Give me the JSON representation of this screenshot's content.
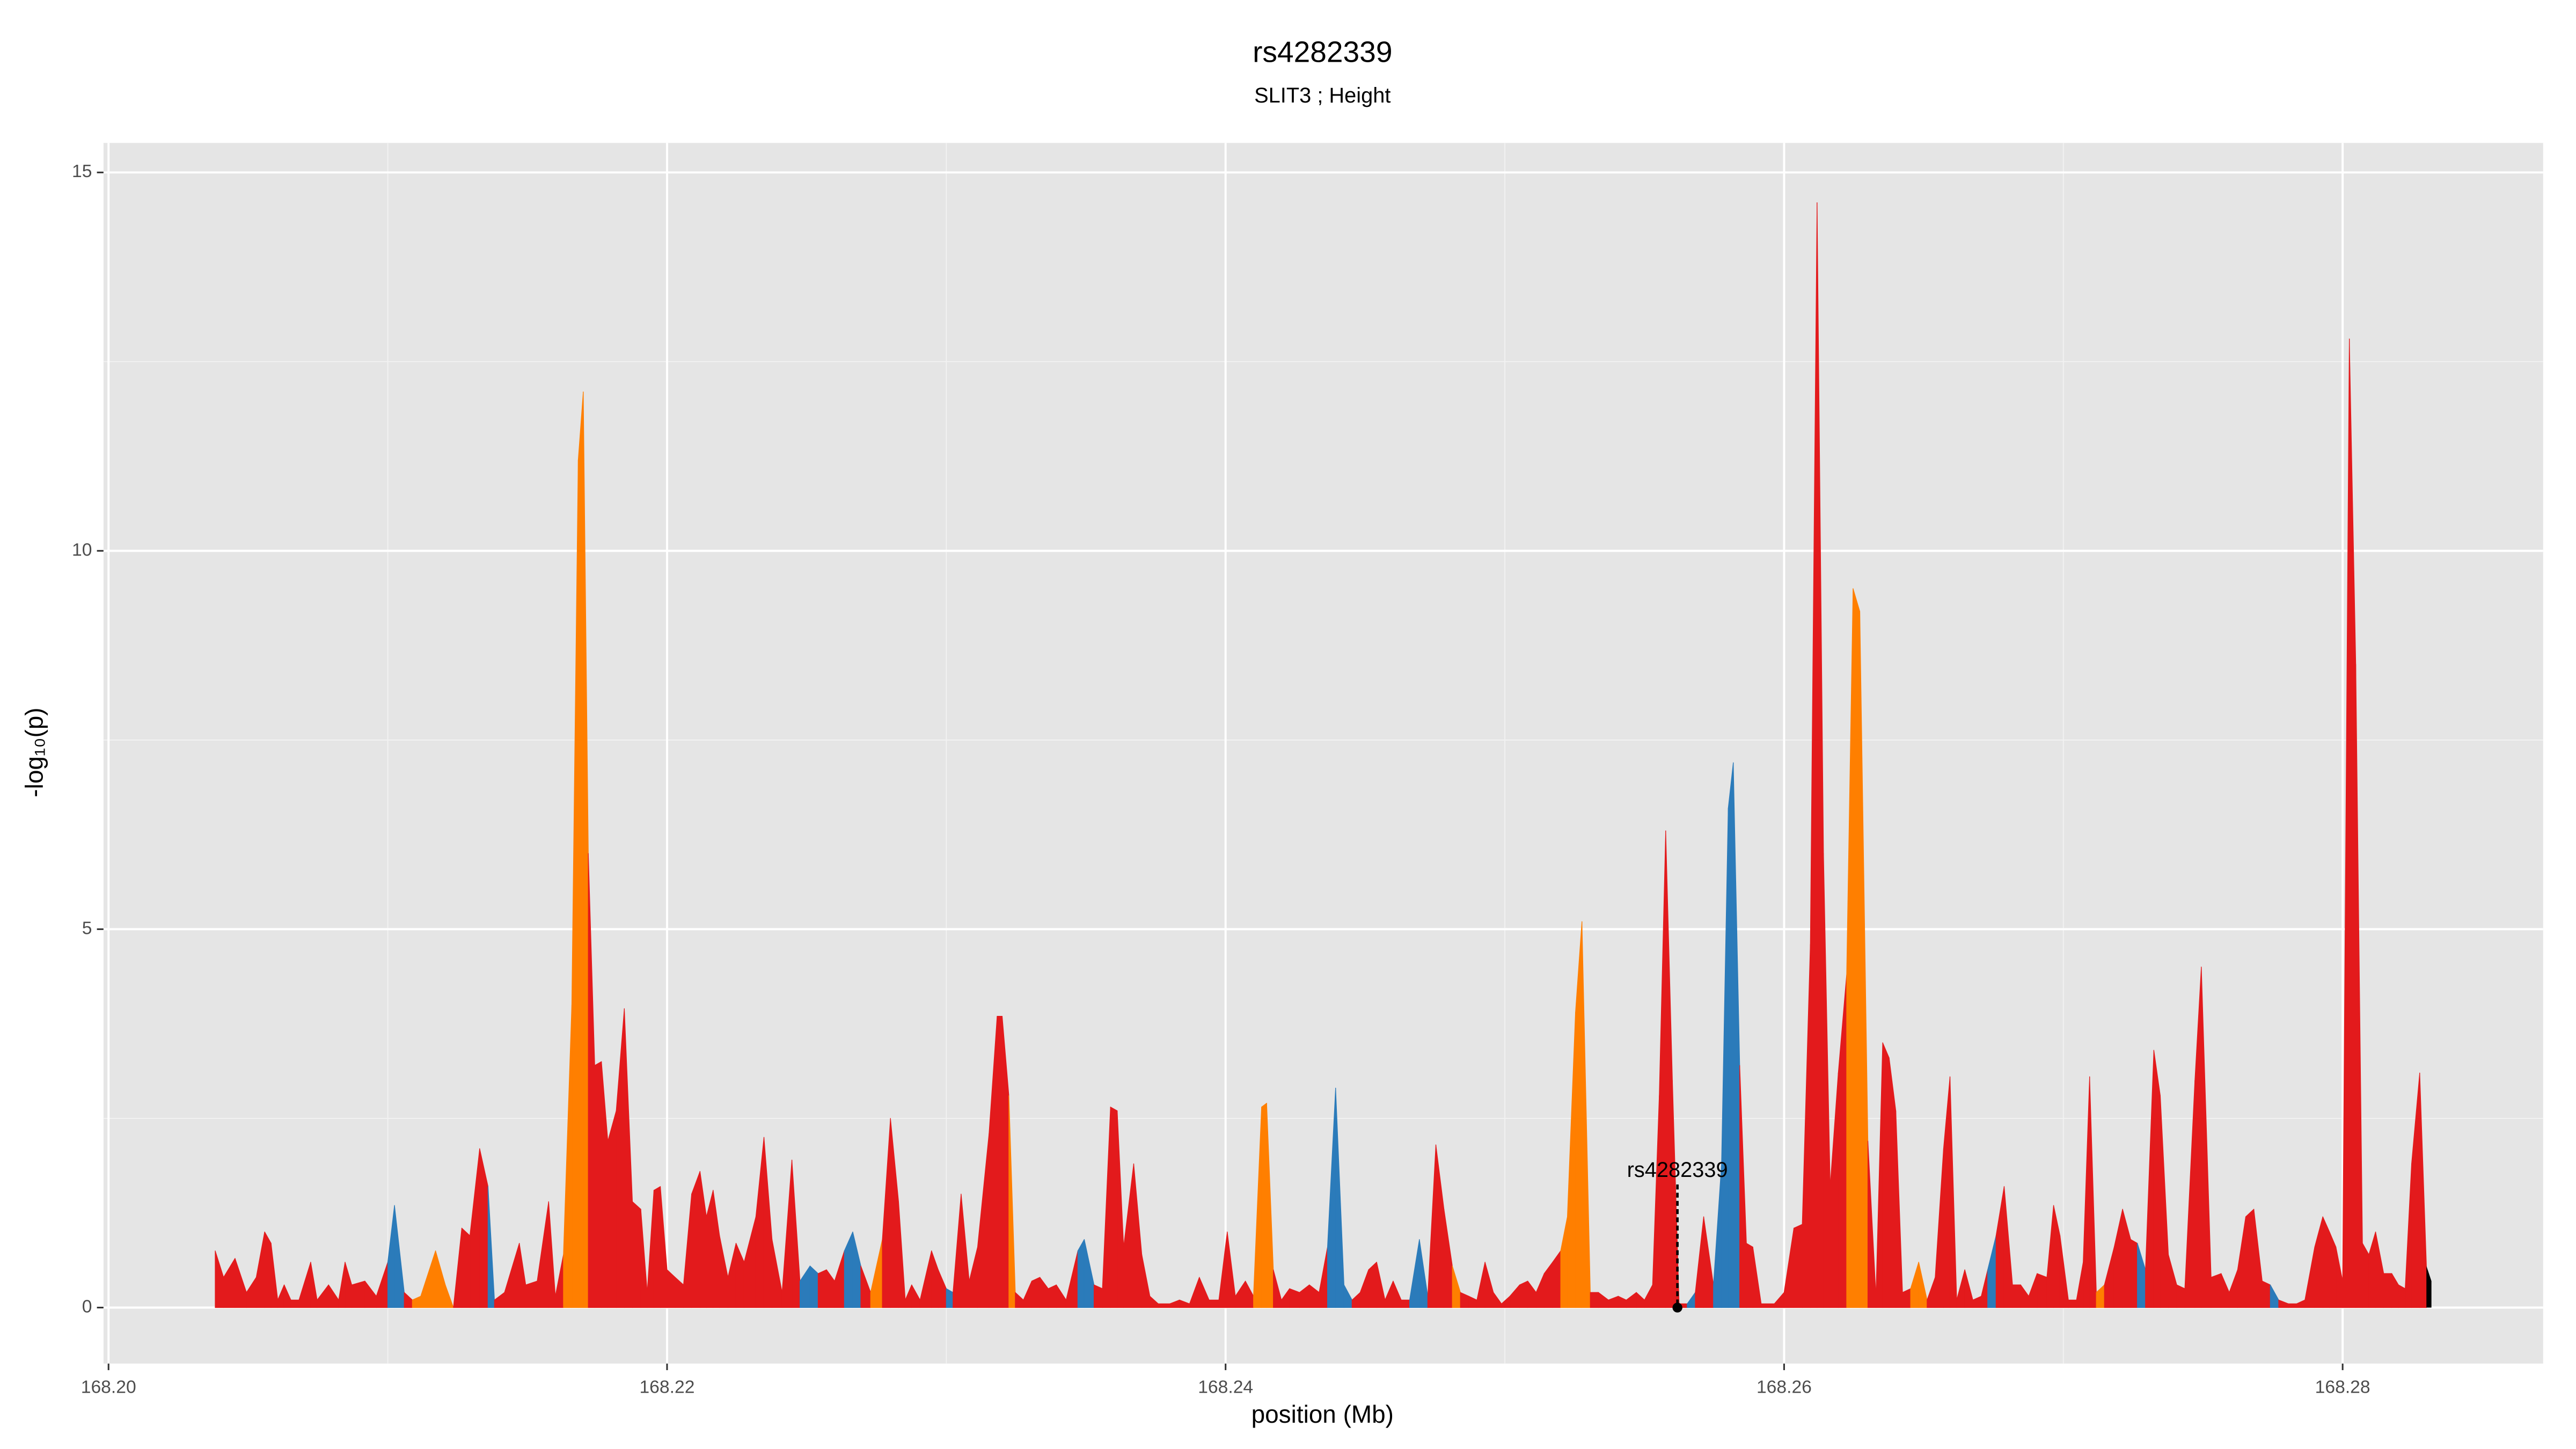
{
  "chart_data": {
    "type": "area",
    "title": "rs4282339",
    "subtitle": "SLIT3 ; Height",
    "x_label": "position (Mb)",
    "y_label": "-log₁₀(p)",
    "xlim": [
      168.19982,
      168.28718
    ],
    "ylim": [
      -0.74,
      15.39
    ],
    "xticks": [
      {
        "value": 168.2,
        "label": "168.20"
      },
      168.22,
      168.24,
      168.26,
      168.28
    ],
    "yticks": [
      0,
      5,
      10,
      15
    ],
    "x_minor_grid": [
      168.21,
      168.23,
      168.25,
      168.27
    ],
    "y_minor_grid": [
      2.5,
      7.5,
      12.5
    ],
    "grid": true,
    "x": [
      168.20382,
      168.20412,
      168.20453,
      168.20494,
      168.20529,
      168.20559,
      168.20582,
      168.20606,
      168.20629,
      168.20653,
      168.20682,
      168.20724,
      168.20747,
      168.20788,
      168.20824,
      168.20847,
      168.20871,
      168.20918,
      168.20959,
      168.21,
      168.21024,
      168.21059,
      168.21088,
      168.21118,
      168.21171,
      168.21206,
      168.21235,
      168.21265,
      168.21294,
      168.21329,
      168.21359,
      168.21382,
      168.21418,
      168.21471,
      168.21494,
      168.21535,
      168.21576,
      168.216,
      168.21629,
      168.21659,
      168.21682,
      168.217,
      168.21718,
      168.21741,
      168.21765,
      168.21788,
      168.21818,
      168.21847,
      168.21876,
      168.21906,
      168.21929,
      168.21953,
      168.21976,
      168.22,
      168.22029,
      168.22059,
      168.22088,
      168.22118,
      168.22141,
      168.22165,
      168.22188,
      168.22218,
      168.22247,
      168.22276,
      168.22318,
      168.22347,
      168.22376,
      168.22412,
      168.22447,
      168.22476,
      168.22512,
      168.22541,
      168.22571,
      168.226,
      168.22635,
      168.22665,
      168.22694,
      168.22729,
      168.22771,
      168.228,
      168.22829,
      168.22853,
      168.22876,
      168.22906,
      168.22947,
      168.22971,
      168.23,
      168.23024,
      168.23053,
      168.23082,
      168.23112,
      168.23153,
      168.23182,
      168.232,
      168.23224,
      168.23247,
      168.23276,
      168.23306,
      168.23335,
      168.23365,
      168.23394,
      168.23429,
      168.23471,
      168.23494,
      168.23529,
      168.23559,
      168.23588,
      168.23612,
      168.23635,
      168.23671,
      168.237,
      168.23729,
      168.23759,
      168.238,
      168.23835,
      168.23871,
      168.23906,
      168.23941,
      168.23976,
      168.24006,
      168.24035,
      168.24071,
      168.241,
      168.24129,
      168.24147,
      168.24171,
      168.242,
      168.24229,
      168.24265,
      168.243,
      168.24335,
      168.24365,
      168.24394,
      168.24424,
      168.24453,
      168.24482,
      168.24512,
      168.24541,
      168.24571,
      168.246,
      168.24629,
      168.24659,
      168.24694,
      168.24724,
      168.24753,
      168.24782,
      168.24812,
      168.24841,
      168.24871,
      168.249,
      168.24929,
      168.24959,
      168.24988,
      168.25018,
      168.25053,
      168.25082,
      168.25112,
      168.25141,
      168.25171,
      168.252,
      168.25224,
      168.25253,
      168.25276,
      168.25306,
      168.25335,
      168.25371,
      168.25406,
      168.25435,
      168.25471,
      168.255,
      168.25529,
      168.25553,
      168.25576,
      168.256,
      168.25624,
      168.25653,
      168.25682,
      168.25712,
      168.25747,
      168.25776,
      168.258,
      168.25818,
      168.25841,
      168.25865,
      168.25888,
      168.25918,
      168.25965,
      168.26,
      168.26035,
      168.26065,
      168.26094,
      168.26118,
      168.26141,
      168.26165,
      168.26194,
      168.26224,
      168.26247,
      168.26271,
      168.263,
      168.26329,
      168.26353,
      168.26376,
      168.264,
      168.26424,
      168.26453,
      168.26482,
      168.26512,
      168.26541,
      168.26571,
      168.26594,
      168.26618,
      168.26647,
      168.26676,
      168.26706,
      168.26729,
      168.26759,
      168.26788,
      168.26818,
      168.26847,
      168.26876,
      168.26906,
      168.26941,
      168.26965,
      168.26988,
      168.27018,
      168.27047,
      168.27071,
      168.27094,
      168.27118,
      168.27147,
      168.27182,
      168.27212,
      168.27241,
      168.27265,
      168.27294,
      168.27324,
      168.27347,
      168.27376,
      168.27406,
      168.27435,
      168.27471,
      168.27494,
      168.27529,
      168.27565,
      168.27594,
      168.27624,
      168.27653,
      168.27682,
      168.27712,
      168.27741,
      168.27771,
      168.27806,
      168.27835,
      168.27865,
      168.279,
      168.27929,
      168.27953,
      168.27976,
      168.28,
      168.28024,
      168.28047,
      168.28071,
      168.28094,
      168.28118,
      168.28147,
      168.28176,
      168.282,
      168.28224,
      168.28247,
      168.28276,
      168.283,
      168.28318
    ],
    "values": [
      0.75,
      0.4,
      0.65,
      0.2,
      0.4,
      1.0,
      0.85,
      0.1,
      0.3,
      0.1,
      0.1,
      0.6,
      0.1,
      0.3,
      0.1,
      0.6,
      0.3,
      0.35,
      0.15,
      0.6,
      1.35,
      0.2,
      0.1,
      0.15,
      0.75,
      0.3,
      0.0,
      1.05,
      0.95,
      2.1,
      1.6,
      0.1,
      0.2,
      0.85,
      0.3,
      0.35,
      1.4,
      0.15,
      0.7,
      4.0,
      11.2,
      12.1,
      6.0,
      3.2,
      3.25,
      2.2,
      2.6,
      3.95,
      1.4,
      1.3,
      0.2,
      1.55,
      1.6,
      0.5,
      0.4,
      0.3,
      1.5,
      1.8,
      1.2,
      1.55,
      0.95,
      0.4,
      0.85,
      0.6,
      1.2,
      2.25,
      0.9,
      0.2,
      1.95,
      0.35,
      0.55,
      0.45,
      0.5,
      0.35,
      0.75,
      1.0,
      0.55,
      0.2,
      0.9,
      2.5,
      1.4,
      0.1,
      0.3,
      0.1,
      0.75,
      0.5,
      0.25,
      0.2,
      1.5,
      0.35,
      0.8,
      2.3,
      3.85,
      3.85,
      2.8,
      0.2,
      0.1,
      0.35,
      0.4,
      0.25,
      0.3,
      0.1,
      0.75,
      0.9,
      0.3,
      0.25,
      2.65,
      2.6,
      0.8,
      1.9,
      0.7,
      0.15,
      0.05,
      0.05,
      0.1,
      0.05,
      0.4,
      0.1,
      0.1,
      1.0,
      0.15,
      0.35,
      0.15,
      2.65,
      2.7,
      0.5,
      0.1,
      0.25,
      0.2,
      0.3,
      0.2,
      0.8,
      2.9,
      0.3,
      0.1,
      0.2,
      0.5,
      0.6,
      0.1,
      0.35,
      0.1,
      0.1,
      0.9,
      0.15,
      2.15,
      1.3,
      0.55,
      0.2,
      0.15,
      0.1,
      0.6,
      0.2,
      0.05,
      0.15,
      0.3,
      0.35,
      0.2,
      0.45,
      0.6,
      0.75,
      1.2,
      3.9,
      5.1,
      0.2,
      0.2,
      0.1,
      0.15,
      0.1,
      0.2,
      0.1,
      0.3,
      2.8,
      6.3,
      3.0,
      0.05,
      0.05,
      0.2,
      1.2,
      0.3,
      1.9,
      6.6,
      7.2,
      3.2,
      0.85,
      0.8,
      0.05,
      0.05,
      0.2,
      1.05,
      1.1,
      4.8,
      14.6,
      6.0,
      1.6,
      3.1,
      4.4,
      9.5,
      9.2,
      2.2,
      0.15,
      3.5,
      3.3,
      2.6,
      0.2,
      0.25,
      0.6,
      0.1,
      0.4,
      2.1,
      3.05,
      0.1,
      0.5,
      0.1,
      0.15,
      0.5,
      0.95,
      1.6,
      0.3,
      0.3,
      0.15,
      0.45,
      0.4,
      1.35,
      0.95,
      0.1,
      0.1,
      0.6,
      3.05,
      0.2,
      0.3,
      0.8,
      1.3,
      0.9,
      0.85,
      0.5,
      3.4,
      2.8,
      0.7,
      0.3,
      0.25,
      3.0,
      4.5,
      0.4,
      0.45,
      0.2,
      0.5,
      1.2,
      1.3,
      0.35,
      0.3,
      0.1,
      0.05,
      0.05,
      0.1,
      0.8,
      1.2,
      1.0,
      0.8,
      0.35,
      12.8,
      8.5,
      0.85,
      0.7,
      1.0,
      0.45,
      0.45,
      0.3,
      0.25,
      1.9,
      3.1,
      0.55,
      0.35
    ],
    "point_colors": [
      "#e31a1c",
      "#ff7f00",
      "#e31a1c",
      "#e31a1c",
      "#e31a1c",
      "#e31a1c",
      "#e31a1c",
      "#e31a1c",
      "#e31a1c",
      "#e31a1c",
      "#e31a1c",
      "#e31a1c",
      "#e31a1c",
      "#e31a1c",
      "#e31a1c",
      "#e31a1c",
      "#e31a1c",
      "#e31a1c",
      "#e31a1c",
      "#e31a1c",
      "#2b7bba",
      "#e31a1c",
      "#e31a1c",
      "#ff7f00",
      "#ff7f00",
      "#ff7f00",
      "#e31a1c",
      "#e31a1c",
      "#e31a1c",
      "#e31a1c",
      "#2b7bba",
      "#e31a1c",
      "#e31a1c",
      "#e31a1c",
      "#e31a1c",
      "#e31a1c",
      "#e31a1c",
      "#e31a1c",
      "#e31a1c",
      "#ff7f00",
      "#ff7f00",
      "#ff7f00",
      "#e31a1c",
      "#e31a1c",
      "#e31a1c",
      "#e31a1c",
      "#e31a1c",
      "#e31a1c",
      "#e31a1c",
      "#e31a1c",
      "#e31a1c",
      "#e31a1c",
      "#e31a1c",
      "#e31a1c",
      "#e31a1c",
      "#e31a1c",
      "#e31a1c",
      "#e31a1c",
      "#e31a1c",
      "#e31a1c",
      "#e31a1c",
      "#e31a1c",
      "#e31a1c",
      "#e31a1c",
      "#e31a1c",
      "#e31a1c",
      "#e31a1c",
      "#e31a1c",
      "#e31a1c",
      "#e31a1c",
      "#2b7bba",
      "#e31a1c",
      "#e31a1c",
      "#e31a1c",
      "#e31a1c",
      "#2b7bba",
      "#e31a1c",
      "#e31a1c",
      "#ff7f00",
      "#e31a1c",
      "#e31a1c",
      "#e31a1c",
      "#e31a1c",
      "#e31a1c",
      "#e31a1c",
      "#e31a1c",
      "#2b7bba",
      "#e31a1c",
      "#e31a1c",
      "#e31a1c",
      "#e31a1c",
      "#e31a1c",
      "#e31a1c",
      "#e31a1c",
      "#ff7f00",
      "#e31a1c",
      "#e31a1c",
      "#e31a1c",
      "#e31a1c",
      "#e31a1c",
      "#e31a1c",
      "#e31a1c",
      "#e31a1c",
      "#2b7bba",
      "#e31a1c",
      "#e31a1c",
      "#e31a1c",
      "#e31a1c",
      "#e31a1c",
      "#e31a1c",
      "#e31a1c",
      "#e31a1c",
      "#e31a1c",
      "#e31a1c",
      "#e31a1c",
      "#e31a1c",
      "#e31a1c",
      "#e31a1c",
      "#e31a1c",
      "#e31a1c",
      "#e31a1c",
      "#e31a1c",
      "#e31a1c",
      "#ff7f00",
      "#ff7f00",
      "#e31a1c",
      "#e31a1c",
      "#e31a1c",
      "#e31a1c",
      "#e31a1c",
      "#e31a1c",
      "#e31a1c",
      "#2b7bba",
      "#2b7bba",
      "#2b7bba",
      "#e31a1c",
      "#e31a1c",
      "#e31a1c",
      "#e31a1c",
      "#e31a1c",
      "#e31a1c",
      "#e31a1c",
      "#2b7bba",
      "#e31a1c",
      "#e31a1c",
      "#e31a1c",
      "#ff7f00",
      "#e31a1c",
      "#e31a1c",
      "#e31a1c",
      "#e31a1c",
      "#e31a1c",
      "#e31a1c",
      "#e31a1c",
      "#e31a1c",
      "#e31a1c",
      "#e31a1c",
      "#e31a1c",
      "#e31a1c",
      "#e31a1c",
      "#ff7f00",
      "#ff7f00",
      "#ff7f00",
      "#e31a1c",
      "#e31a1c",
      "#e31a1c",
      "#e31a1c",
      "#e31a1c",
      "#e31a1c",
      "#e31a1c",
      "#e31a1c",
      "#e31a1c",
      "#e31a1c",
      "#e31a1c",
      "#e31a1c",
      "#e31a1c",
      "#2b7bba",
      "#e31a1c",
      "#e31a1c",
      "#2b7bba",
      "#2b7bba",
      "#2b7bba",
      "#e31a1c",
      "#e31a1c",
      "#e31a1c",
      "#e31a1c",
      "#e31a1c",
      "#e31a1c",
      "#e31a1c",
      "#e31a1c",
      "#e31a1c",
      "#e31a1c",
      "#e31a1c",
      "#e31a1c",
      "#e31a1c",
      "#e31a1c",
      "#ff7f00",
      "#ff7f00",
      "#e31a1c",
      "#e31a1c",
      "#e31a1c",
      "#e31a1c",
      "#e31a1c",
      "#e31a1c",
      "#e31a1c",
      "#ff7f00",
      "#ff7f00",
      "#e31a1c",
      "#e31a1c",
      "#e31a1c",
      "#e31a1c",
      "#e31a1c",
      "#e31a1c",
      "#e31a1c",
      "#e31a1c",
      "#2b7bba",
      "#e31a1c",
      "#e31a1c",
      "#e31a1c",
      "#2b7bba",
      "#e31a1c",
      "#2b7bba",
      "#e31a1c",
      "#e31a1c",
      "#e31a1c",
      "#e31a1c",
      "#e31a1c",
      "#e31a1c",
      "#e31a1c",
      "#ff7f00",
      "#e31a1c",
      "#e31a1c",
      "#e31a1c",
      "#2b7bba",
      "#e31a1c",
      "#e31a1c",
      "#e31a1c",
      "#e31a1c",
      "#e31a1c",
      "#e31a1c",
      "#e31a1c",
      "#e31a1c",
      "#e31a1c",
      "#e31a1c",
      "#e31a1c",
      "#e31a1c",
      "#e31a1c",
      "#e31a1c",
      "#e31a1c",
      "#2b7bba",
      "#e31a1c",
      "#e31a1c",
      "#e31a1c",
      "#e31a1c",
      "#e31a1c",
      "#e31a1c",
      "#e31a1c",
      "#e31a1c",
      "#e31a1c",
      "#e31a1c",
      "#e31a1c",
      "#e31a1c",
      "#e31a1c",
      "#e31a1c",
      "#e31a1c",
      "#e31a1c",
      "#e31a1c",
      "#e31a1c",
      "#e31a1c",
      "#e31a1c"
    ],
    "annotation": {
      "text": "rs4282339",
      "x": 168.25618,
      "y": 0,
      "label_y": 1.8
    }
  }
}
